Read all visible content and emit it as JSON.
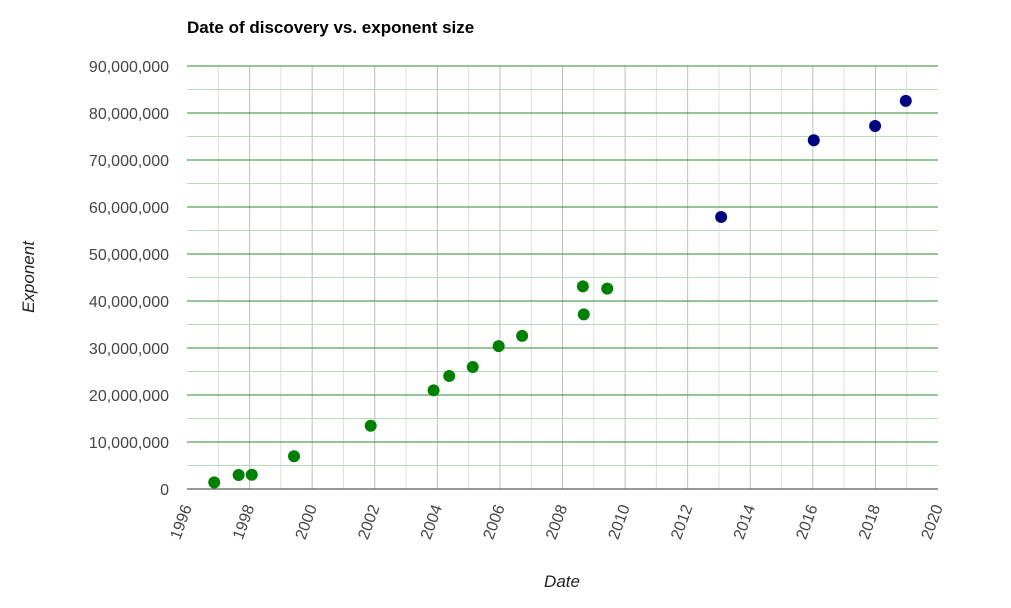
{
  "chart_data": {
    "type": "scatter",
    "title": "Date of discovery vs. exponent size",
    "xlabel": "Date",
    "ylabel": "Exponent",
    "xlim": [
      1996,
      2020
    ],
    "ylim": [
      0,
      90000000
    ],
    "x_ticks": [
      "1996",
      "1998",
      "2000",
      "2002",
      "2004",
      "2006",
      "2008",
      "2010",
      "2012",
      "2014",
      "2016",
      "2018",
      "2020"
    ],
    "y_ticks": [
      "0",
      "10,000,000",
      "20,000,000",
      "30,000,000",
      "40,000,000",
      "50,000,000",
      "60,000,000",
      "70,000,000",
      "80,000,000",
      "90,000,000"
    ],
    "grid": true,
    "legend": "none",
    "series": [
      {
        "color": "#008000",
        "points": [
          {
            "x": 1996.87,
            "y": 1398269
          },
          {
            "x": 1997.65,
            "y": 2976221
          },
          {
            "x": 1998.07,
            "y": 3021377
          },
          {
            "x": 1999.42,
            "y": 6972593
          },
          {
            "x": 2001.87,
            "y": 13466917
          },
          {
            "x": 2003.88,
            "y": 20996011
          },
          {
            "x": 2004.38,
            "y": 24036583
          },
          {
            "x": 2005.13,
            "y": 25964951
          },
          {
            "x": 2005.96,
            "y": 30402457
          },
          {
            "x": 2006.71,
            "y": 32582657
          },
          {
            "x": 2008.65,
            "y": 43112609
          },
          {
            "x": 2008.68,
            "y": 37156667
          },
          {
            "x": 2009.43,
            "y": 42643801
          }
        ]
      },
      {
        "color": "#000080",
        "points": [
          {
            "x": 2013.07,
            "y": 57885161
          },
          {
            "x": 2016.03,
            "y": 74207281
          },
          {
            "x": 2017.99,
            "y": 77232917
          },
          {
            "x": 2018.97,
            "y": 82589933
          }
        ]
      }
    ]
  }
}
